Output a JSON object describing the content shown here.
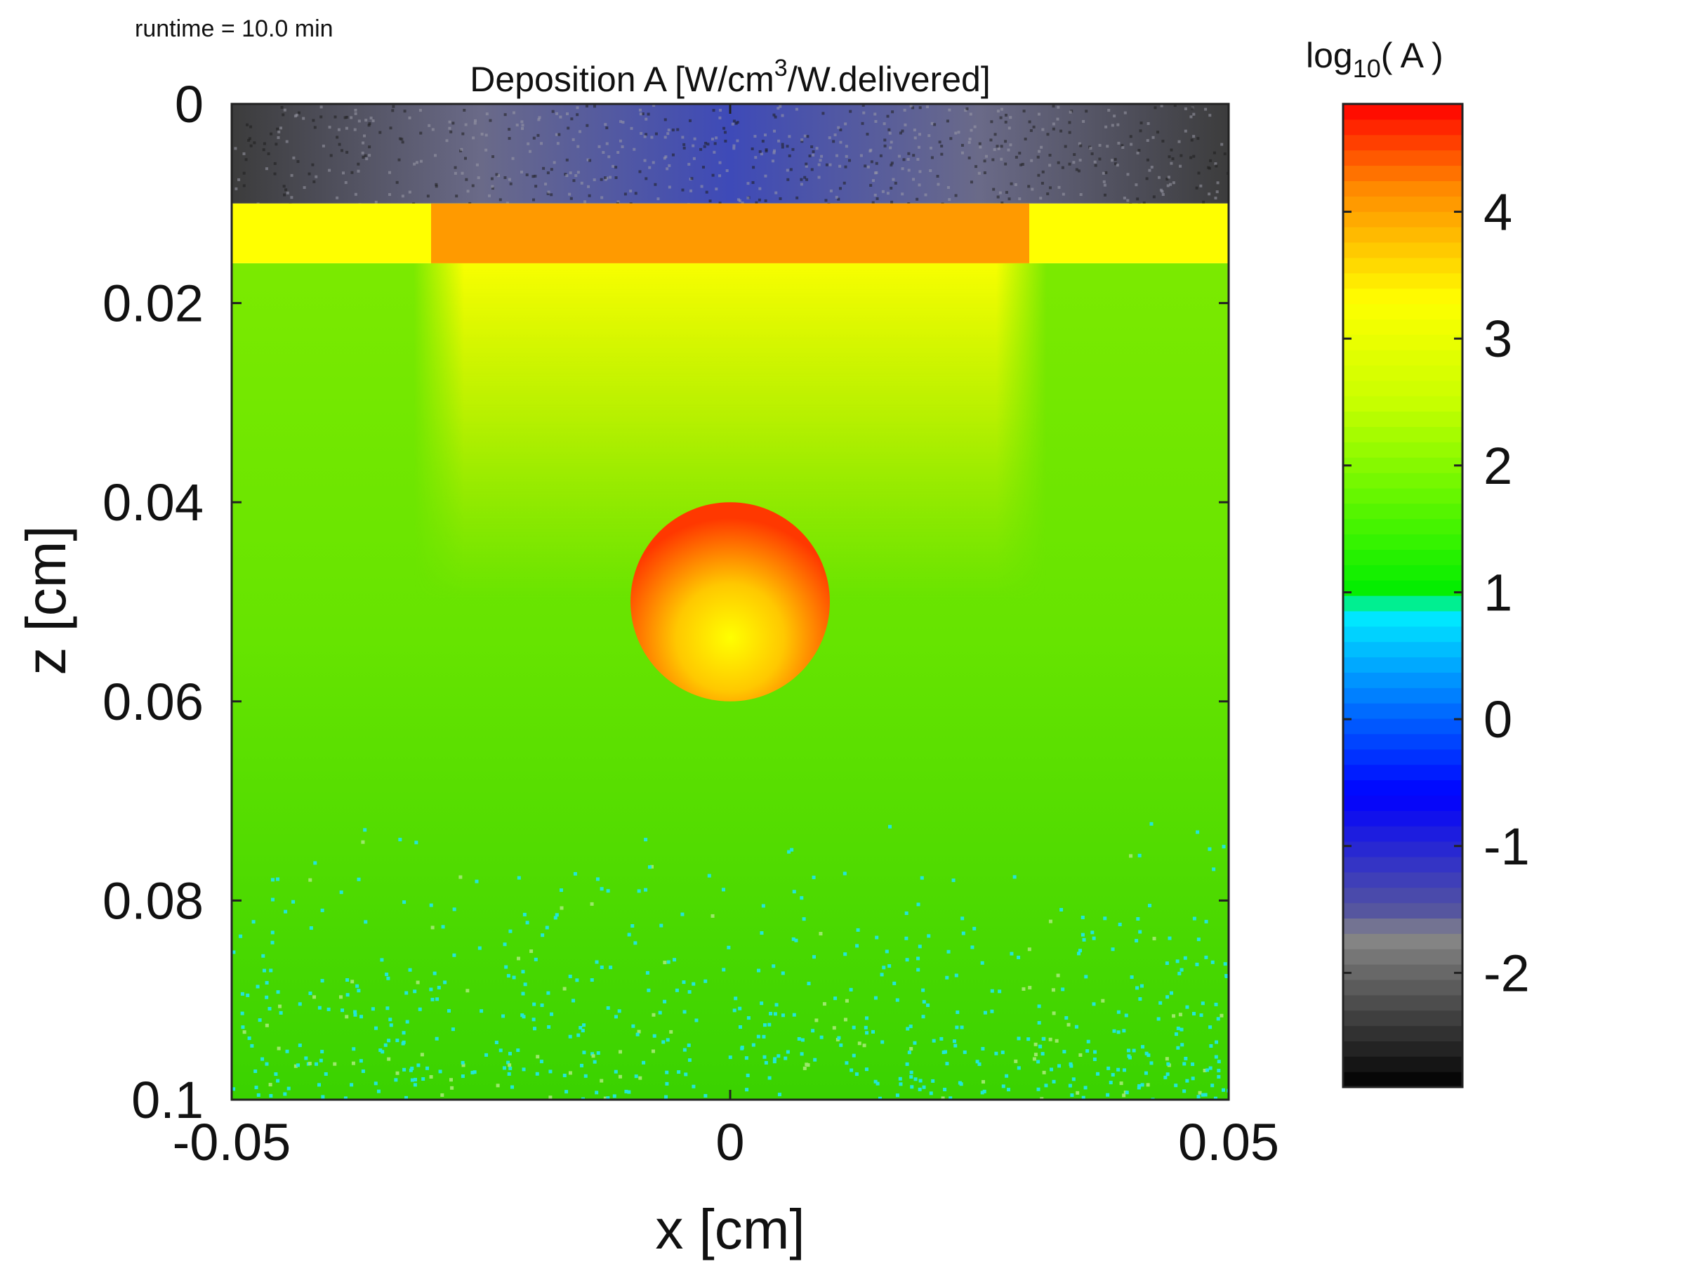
{
  "runtime_label": "runtime = 10.0 min",
  "title": {
    "prefix": "Deposition A [W/cm",
    "sup": "3",
    "suffix": "/W.delivered]"
  },
  "colorbar": {
    "title_pre": "log",
    "title_sub": "10",
    "title_post": "( A )"
  },
  "axes": {
    "xlabel": "x [cm]",
    "ylabel": "z [cm]"
  },
  "colors": {
    "frame": "#222222",
    "background": "#ffffff"
  },
  "chart_data": {
    "type": "heatmap",
    "title": "Deposition A [W/cm3/W.delivered]",
    "xlabel": "x [cm]",
    "ylabel": "z [cm]",
    "xlim": [
      -0.05,
      0.05
    ],
    "ylim": [
      0,
      0.1
    ],
    "y_reversed": true,
    "x_ticks": [
      -0.05,
      0,
      0.05
    ],
    "x_tick_labels": [
      "-0.05",
      "0",
      "0.05"
    ],
    "y_ticks": [
      0,
      0.02,
      0.04,
      0.06,
      0.08,
      0.1
    ],
    "y_tick_labels": [
      "0",
      "0.02",
      "0.04",
      "0.06",
      "0.08",
      "0.1"
    ],
    "colorbar": {
      "label": "log10( A )",
      "range": [
        -2.9,
        4.85
      ],
      "ticks": [
        4,
        3,
        2,
        1,
        0,
        -1,
        -2
      ],
      "tick_labels": [
        "4",
        "3",
        "2",
        "1",
        "0",
        "-1",
        "-2"
      ],
      "colormap_stops": [
        {
          "value": -2.9,
          "color": "#000000"
        },
        {
          "value": -1.7,
          "color": "#8a8a8a"
        },
        {
          "value": -1.55,
          "color": "#5a5a9a"
        },
        {
          "value": -0.6,
          "color": "#0000ff"
        },
        {
          "value": 0.0,
          "color": "#0060ff"
        },
        {
          "value": 0.85,
          "color": "#00f0ff"
        },
        {
          "value": 1.0,
          "color": "#00ee00"
        },
        {
          "value": 2.5,
          "color": "#c8ff00"
        },
        {
          "value": 3.3,
          "color": "#ffff00"
        },
        {
          "value": 4.2,
          "color": "#ff8800"
        },
        {
          "value": 4.85,
          "color": "#ff0000"
        }
      ]
    },
    "regions": [
      {
        "name": "top layer",
        "z": [
          0,
          0.01
        ],
        "x": [
          -0.05,
          0.05
        ],
        "log10_A": -1.6
      },
      {
        "name": "surface band",
        "z": [
          0.01,
          0.016
        ],
        "x": [
          -0.05,
          0.05
        ],
        "log10_A": 3.3
      },
      {
        "name": "surface band (beam)",
        "z": [
          0.01,
          0.016
        ],
        "x": [
          -0.03,
          0.03
        ],
        "log10_A": 4.1
      },
      {
        "name": "beam column",
        "z": [
          0.016,
          0.05
        ],
        "x": [
          -0.03,
          0.03
        ],
        "log10_A": 2.9
      },
      {
        "name": "tissue",
        "z": [
          0.016,
          0.1
        ],
        "x": [
          -0.05,
          0.05
        ],
        "log10_A": 1.9
      },
      {
        "name": "vessel",
        "center": [
          0,
          0.05
        ],
        "radius": 0.01,
        "log10_A": 4.2
      }
    ]
  }
}
